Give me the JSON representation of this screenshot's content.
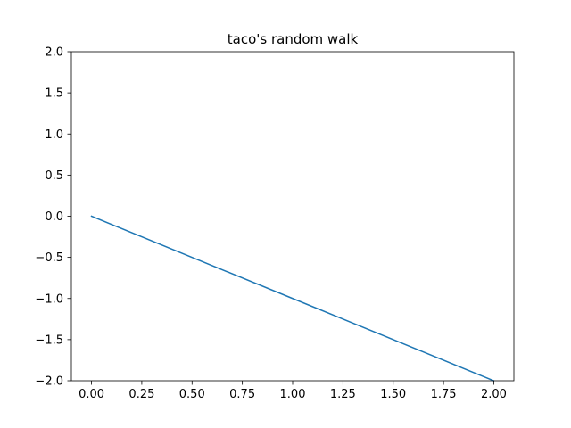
{
  "chart_data": {
    "type": "line",
    "title": "taco's random walk",
    "xlabel": "",
    "ylabel": "",
    "xlim": [
      -0.1,
      2.1
    ],
    "ylim": [
      -2.0,
      2.0
    ],
    "x_ticks": [
      0.0,
      0.25,
      0.5,
      0.75,
      1.0,
      1.25,
      1.5,
      1.75,
      2.0
    ],
    "x_tick_labels": [
      "0.00",
      "0.25",
      "0.50",
      "0.75",
      "1.00",
      "1.25",
      "1.50",
      "1.75",
      "2.00"
    ],
    "y_ticks": [
      -2.0,
      -1.5,
      -1.0,
      -0.5,
      0.0,
      0.5,
      1.0,
      1.5,
      2.0
    ],
    "y_tick_labels": [
      "−2.0",
      "−1.5",
      "−1.0",
      "−0.5",
      "0.0",
      "0.5",
      "1.0",
      "1.5",
      "2.0"
    ],
    "grid": false,
    "series": [
      {
        "x": [
          0,
          1,
          2
        ],
        "values": [
          0,
          -1,
          -2
        ],
        "color": "#1f77b4"
      }
    ]
  }
}
